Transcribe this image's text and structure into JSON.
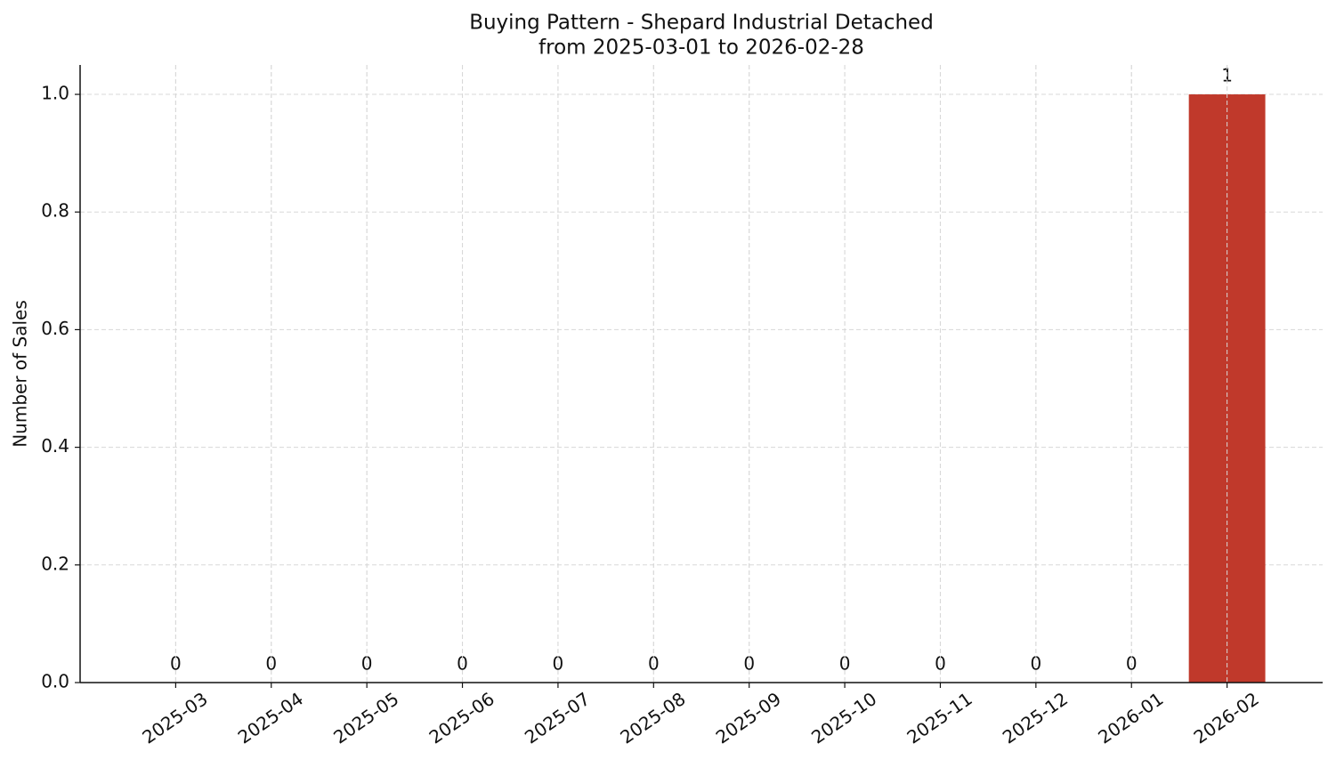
{
  "chart_data": {
    "type": "bar",
    "title": "Buying Pattern - Shepard Industrial Detached",
    "subtitle": "from 2025-03-01 to 2026-02-28",
    "y_label": "Number of Sales",
    "categories": [
      "2025-03",
      "2025-04",
      "2025-05",
      "2025-06",
      "2025-07",
      "2025-08",
      "2025-09",
      "2025-10",
      "2025-11",
      "2025-12",
      "2026-01",
      "2026-02"
    ],
    "values": [
      0,
      0,
      0,
      0,
      0,
      0,
      0,
      0,
      0,
      0,
      0,
      1
    ],
    "color": "#c0392b",
    "ylim": [
      0,
      1.05
    ],
    "yticks": [
      {
        "value": 0,
        "label": "0.0"
      },
      0.2,
      0.4,
      0.6,
      0.8,
      {
        "value": 1,
        "label": "1.0"
      }
    ],
    "grid": true
  }
}
